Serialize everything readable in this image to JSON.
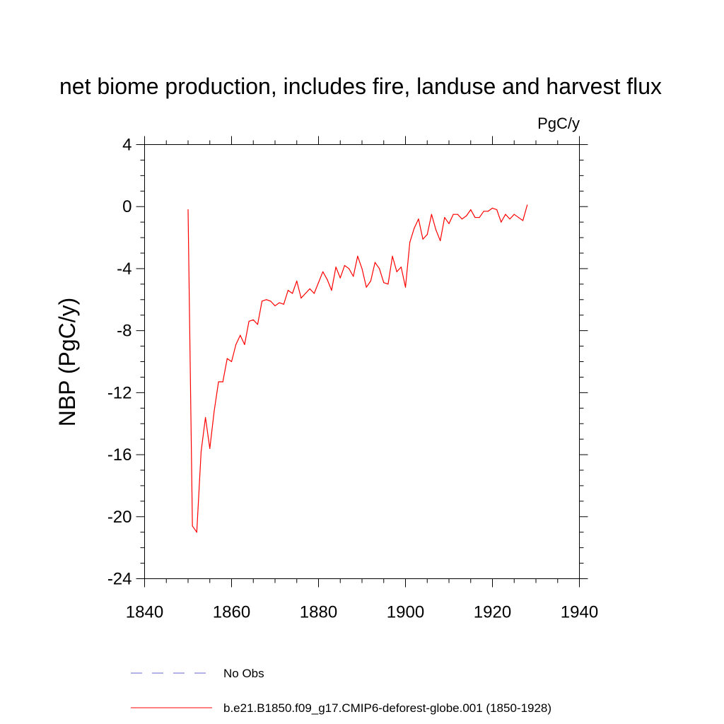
{
  "chart_data": {
    "type": "line",
    "title": "net biome production, includes fire, landuse and harvest flux",
    "units": "PgC/y",
    "ylabel": "NBP  (PgC/y)",
    "xlabel": "",
    "xlim": [
      1840,
      1940
    ],
    "ylim": [
      -24,
      4
    ],
    "x_ticks": [
      "1840",
      "1860",
      "1880",
      "1900",
      "1920",
      "1940"
    ],
    "y_ticks": [
      "4",
      "0",
      "-4",
      "-8",
      "-12",
      "-16",
      "-20",
      "-24"
    ],
    "grid": false,
    "legend_placement": "bottom",
    "series": [
      {
        "name": "No Obs",
        "color": "#6666cc",
        "style": "dashed",
        "x": [],
        "y": []
      },
      {
        "name": "b.e21.B1850.f09_g17.CMIP6-deforest-globe.001 (1850-1928)",
        "color": "#ff0000",
        "style": "solid",
        "x": [
          1850,
          1851,
          1852,
          1853,
          1854,
          1855,
          1856,
          1857,
          1858,
          1859,
          1860,
          1861,
          1862,
          1863,
          1864,
          1865,
          1866,
          1867,
          1868,
          1869,
          1870,
          1871,
          1872,
          1873,
          1874,
          1875,
          1876,
          1877,
          1878,
          1879,
          1880,
          1881,
          1882,
          1883,
          1884,
          1885,
          1886,
          1887,
          1888,
          1889,
          1890,
          1891,
          1892,
          1893,
          1894,
          1895,
          1896,
          1897,
          1898,
          1899,
          1900,
          1901,
          1902,
          1903,
          1904,
          1905,
          1906,
          1907,
          1908,
          1909,
          1910,
          1911,
          1912,
          1913,
          1914,
          1915,
          1916,
          1917,
          1918,
          1919,
          1920,
          1921,
          1922,
          1923,
          1924,
          1925,
          1926,
          1927,
          1928
        ],
        "y": [
          -0.2,
          -20.6,
          -21.0,
          -15.8,
          -13.6,
          -15.6,
          -13.2,
          -11.3,
          -11.3,
          -9.8,
          -10.0,
          -8.9,
          -8.3,
          -8.9,
          -7.4,
          -7.3,
          -7.6,
          -6.1,
          -6.0,
          -6.1,
          -6.4,
          -6.2,
          -6.3,
          -5.4,
          -5.6,
          -4.8,
          -5.9,
          -5.6,
          -5.3,
          -5.6,
          -4.9,
          -4.2,
          -4.7,
          -5.4,
          -3.9,
          -4.6,
          -3.8,
          -4.0,
          -4.5,
          -3.2,
          -4.0,
          -5.2,
          -4.8,
          -3.6,
          -4.0,
          -4.9,
          -5.0,
          -3.2,
          -4.2,
          -3.9,
          -5.2,
          -2.3,
          -1.4,
          -0.8,
          -2.1,
          -1.8,
          -0.5,
          -1.5,
          -2.2,
          -0.7,
          -1.1,
          -0.5,
          -0.5,
          -0.8,
          -0.6,
          -0.2,
          -0.7,
          -0.7,
          -0.3,
          -0.3,
          -0.1,
          -0.2,
          -1.0,
          -0.5,
          -0.8,
          -0.5,
          -0.7,
          -0.9,
          0.1
        ]
      }
    ]
  }
}
